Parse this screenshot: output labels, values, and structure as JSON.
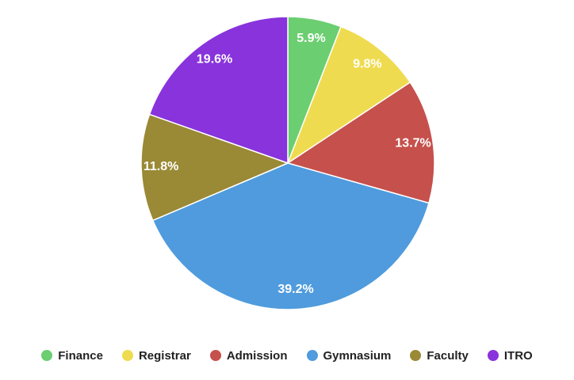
{
  "chart_data": {
    "type": "pie",
    "categories": [
      "Finance",
      "Registrar",
      "Admission",
      "Gymnasium",
      "Faculty",
      "ITRO"
    ],
    "values": [
      5.9,
      9.8,
      13.7,
      39.2,
      11.8,
      19.6
    ],
    "data_labels": [
      "5.9%",
      "9.8%",
      "13.7%",
      "39.2%",
      "11.8%",
      "19.6%"
    ],
    "colors": [
      "#6bce70",
      "#efdb4f",
      "#c6504c",
      "#4f9bdd",
      "#9a8935",
      "#8833dc"
    ],
    "start_angle": "12 o'clock",
    "direction": "clockwise",
    "legend_position": "bottom"
  }
}
